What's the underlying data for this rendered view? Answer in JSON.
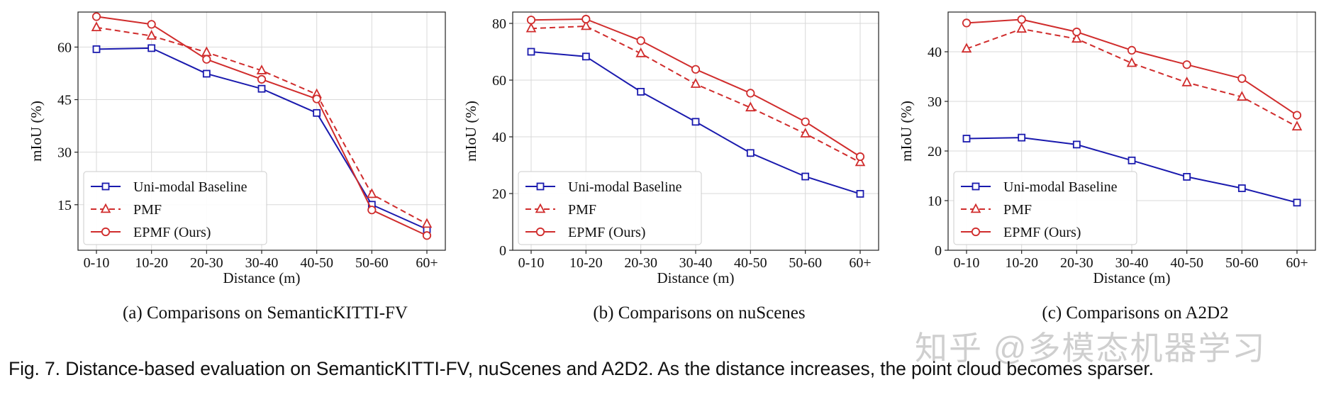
{
  "figure_caption": "Fig. 7. Distance-based evaluation on SemanticKITTI-FV, nuScenes and A2D2. As the distance increases, the point cloud becomes sparser.",
  "watermark": "知乎 @多模态机器学习",
  "colors": {
    "baseline": "#1a1aae",
    "pmf": "#d02c2c",
    "epmf": "#d02c2c",
    "grid": "#d9d9d9",
    "axis": "#222222"
  },
  "chart_data": [
    {
      "type": "line",
      "subcaption": "(a) Comparisons on SemanticKITTI-FV",
      "xlabel": "Distance (m)",
      "ylabel": "mIoU (%)",
      "categories": [
        "0-10",
        "10-20",
        "20-30",
        "30-40",
        "40-50",
        "50-60",
        "60+"
      ],
      "ylim": [
        2,
        70
      ],
      "yticks": [
        15,
        30,
        45,
        60
      ],
      "grid": true,
      "legend_position": "bottom-left",
      "series": [
        {
          "name": "Uni-modal Baseline",
          "values": [
            59.4,
            59.7,
            52.4,
            48.1,
            41.2,
            15.0,
            8.0
          ],
          "marker": "square",
          "dash": false,
          "color": "#1a1aae"
        },
        {
          "name": "PMF",
          "values": [
            65.6,
            63.2,
            58.5,
            53.3,
            46.5,
            18.0,
            9.5
          ],
          "marker": "triangle",
          "dash": true,
          "color": "#d02c2c"
        },
        {
          "name": "EPMF (Ours)",
          "values": [
            68.7,
            66.5,
            56.5,
            50.8,
            45.2,
            13.5,
            6.2
          ],
          "marker": "circle",
          "dash": false,
          "color": "#d02c2c"
        }
      ]
    },
    {
      "type": "line",
      "subcaption": "(b) Comparisons on nuScenes",
      "xlabel": "Distance (m)",
      "ylabel": "mIoU (%)",
      "categories": [
        "0-10",
        "10-20",
        "20-30",
        "30-40",
        "40-50",
        "50-60",
        "60+"
      ],
      "ylim": [
        0,
        84
      ],
      "yticks": [
        0,
        20,
        40,
        60,
        80
      ],
      "grid": true,
      "legend_position": "bottom-left",
      "series": [
        {
          "name": "Uni-modal Baseline",
          "values": [
            70.0,
            68.3,
            55.9,
            45.3,
            34.3,
            26.0,
            19.9
          ],
          "marker": "square",
          "dash": false,
          "color": "#1a1aae"
        },
        {
          "name": "PMF",
          "values": [
            78.2,
            79.0,
            69.4,
            58.6,
            50.3,
            41.1,
            31.0
          ],
          "marker": "triangle",
          "dash": true,
          "color": "#d02c2c"
        },
        {
          "name": "EPMF (Ours)",
          "values": [
            81.2,
            81.5,
            73.9,
            63.8,
            55.4,
            45.3,
            33.0
          ],
          "marker": "circle",
          "dash": false,
          "color": "#d02c2c"
        }
      ]
    },
    {
      "type": "line",
      "subcaption": "(c) Comparisons on A2D2",
      "xlabel": "Distance (m)",
      "ylabel": "mIoU (%)",
      "categories": [
        "0-10",
        "10-20",
        "20-30",
        "30-40",
        "40-50",
        "50-60",
        "60+"
      ],
      "ylim": [
        0,
        48
      ],
      "yticks": [
        0,
        10,
        20,
        30,
        40
      ],
      "grid": true,
      "legend_position": "bottom-left",
      "series": [
        {
          "name": "Uni-modal Baseline",
          "values": [
            22.5,
            22.7,
            21.3,
            18.1,
            14.8,
            12.5,
            9.6
          ],
          "marker": "square",
          "dash": false,
          "color": "#1a1aae"
        },
        {
          "name": "PMF",
          "values": [
            40.6,
            44.6,
            42.6,
            37.7,
            33.8,
            30.9,
            24.9
          ],
          "marker": "triangle",
          "dash": true,
          "color": "#d02c2c"
        },
        {
          "name": "EPMF (Ours)",
          "values": [
            45.8,
            46.5,
            44.0,
            40.3,
            37.4,
            34.6,
            27.2
          ],
          "marker": "circle",
          "dash": false,
          "color": "#d02c2c"
        }
      ]
    }
  ]
}
